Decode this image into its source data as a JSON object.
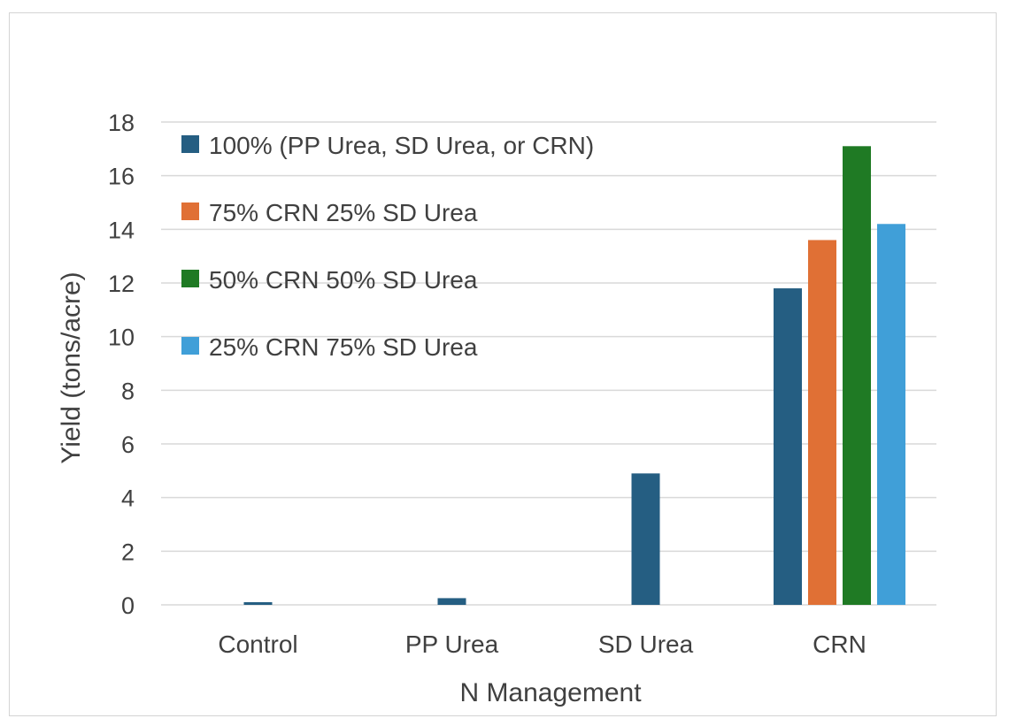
{
  "chart_data": {
    "type": "bar",
    "title": "",
    "xlabel": "N Management",
    "ylabel": "Yield (tons/acre)",
    "categories": [
      "Control",
      "PP Urea",
      "SD Urea",
      "CRN"
    ],
    "ylim": [
      0,
      18
    ],
    "yticks": [
      0,
      2,
      4,
      6,
      8,
      10,
      12,
      14,
      16,
      18
    ],
    "grid": true,
    "legend_position": "top-left",
    "series": [
      {
        "name": "100% (PP Urea, SD Urea, or CRN)",
        "color": "#255E82",
        "values": [
          0.1,
          0.25,
          4.9,
          11.8
        ]
      },
      {
        "name": "75% CRN 25% SD Urea",
        "color": "#E07035",
        "values": [
          null,
          null,
          null,
          13.6
        ]
      },
      {
        "name": "50% CRN 50% SD Urea",
        "color": "#1F7A24",
        "values": [
          null,
          null,
          null,
          17.1
        ]
      },
      {
        "name": "25% CRN 75% SD Urea",
        "color": "#409FD8",
        "values": [
          null,
          null,
          null,
          14.2
        ]
      }
    ]
  }
}
